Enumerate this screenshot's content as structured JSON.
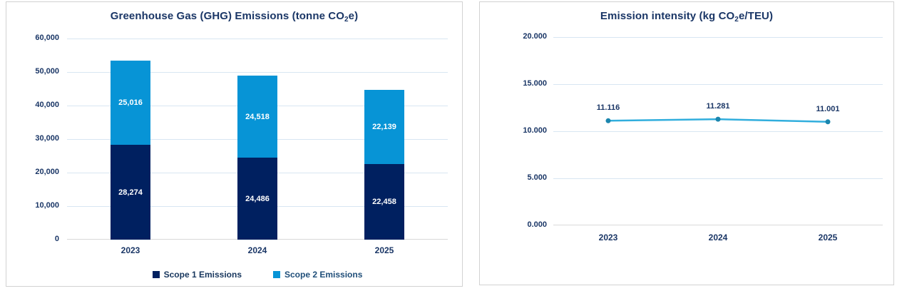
{
  "colors": {
    "scope1_navy": "#002060",
    "scope2_blue": "#0794D6",
    "line_blue": "#31AEDD",
    "marker_teal": "#1B86AE",
    "text_navy": "#1A3666",
    "gridline_blue": "#D8E6F2",
    "axis_gray": "#D9D9D9"
  },
  "chart_data": [
    {
      "type": "bar",
      "stacked": true,
      "title": "Greenhouse Gas (GHG) Emissions (tonne CO2e)",
      "title_parts": {
        "pre": "Greenhouse Gas (GHG) Emissions (tonne CO",
        "sub": "2",
        "post": "e)"
      },
      "categories": [
        "2023",
        "2024",
        "2025"
      ],
      "series": [
        {
          "name": "Scope 1 Emissions",
          "color": "#002060",
          "values": [
            28274,
            24486,
            22458
          ],
          "value_labels": [
            "28,274",
            "24,486",
            "22,458"
          ]
        },
        {
          "name": "Scope 2 Emissions",
          "color": "#0794D6",
          "values": [
            25016,
            24518,
            22139
          ],
          "value_labels": [
            "25,016",
            "24,518",
            "22,139"
          ]
        }
      ],
      "ylim": [
        0,
        60000
      ],
      "ytick_labels_top_to_bottom": [
        "60,000",
        "50,000",
        "40,000",
        "30,000",
        "20,000",
        "10,000",
        "0"
      ],
      "grid": true,
      "legend_position": "bottom"
    },
    {
      "type": "line",
      "title": "Emission intensity (kg CO2e/TEU)",
      "title_parts": {
        "pre": "Emission intensity (kg CO",
        "sub": "2",
        "post": "e/TEU)"
      },
      "categories": [
        "2023",
        "2024",
        "2025"
      ],
      "values": [
        11.116,
        11.281,
        11.001
      ],
      "value_labels": [
        "11.116",
        "11.281",
        "11.001"
      ],
      "line_color": "#31AEDD",
      "marker_color": "#1B86AE",
      "ylim": [
        0,
        20
      ],
      "ytick_labels_top_to_bottom": [
        "20.000",
        "15.000",
        "10.000",
        "5.000",
        "0.000"
      ],
      "grid": true,
      "legend_position": "none"
    }
  ]
}
